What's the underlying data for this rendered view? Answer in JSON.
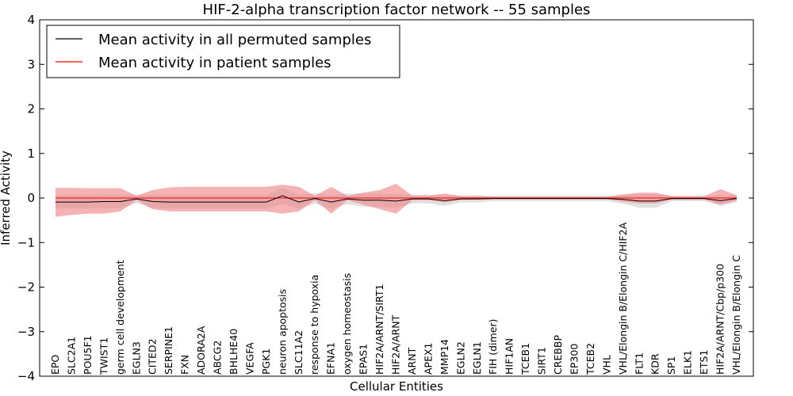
{
  "chart_data": {
    "type": "line",
    "title": "HIF-2-alpha transcription factor network -- 55 samples",
    "xlabel": "Cellular Entities",
    "ylabel": "Inferred Activity",
    "ylim": [
      -4,
      4
    ],
    "yticks": [
      "−4",
      "−3",
      "−2",
      "−1",
      "0",
      "1",
      "2",
      "3",
      "4"
    ],
    "yticks_values": [
      -4,
      -3,
      -2,
      -1,
      0,
      1,
      2,
      3,
      4
    ],
    "legend_position": "top-left",
    "categories": [
      "EPO",
      "SLC2A1",
      "POU5F1",
      "TWIST1",
      "germ cell development",
      "EGLN3",
      "CITED2",
      "SERPINE1",
      "FXN",
      "ADORA2A",
      "ABCG2",
      "BHLHE40",
      "VEGFA",
      "PGK1",
      "neuron apoptosis",
      "SLC11A2",
      "response to hypoxia",
      "EFNA1",
      "oxygen homeostasis",
      "EPAS1",
      "HIF2A/ARNT/SIRT1",
      "HIF2A/ARNT",
      "ARNT",
      "APEX1",
      "MMP14",
      "EGLN2",
      "EGLN1",
      "FIH (dimer)",
      "HIF1AN",
      "TCEB1",
      "SIRT1",
      "CREBBP",
      "EP300",
      "TCEB2",
      "VHL",
      "VHL/Elongin B/Elongin C/HIF2A",
      "FLT1",
      "KDR",
      "SP1",
      "ELK1",
      "ETS1",
      "HIF2A/ARNT/Cbp/p300",
      "VHL/Elongin B/Elongin C"
    ],
    "series": [
      {
        "name": "Mean activity in all permuted samples",
        "color": "#000000",
        "band_color": "#c8c8c8",
        "values": [
          -0.09,
          -0.09,
          -0.09,
          -0.08,
          -0.08,
          -0.02,
          -0.08,
          -0.09,
          -0.09,
          -0.09,
          -0.09,
          -0.09,
          -0.09,
          -0.09,
          0.05,
          -0.09,
          -0.01,
          -0.09,
          -0.02,
          -0.05,
          -0.05,
          -0.07,
          -0.02,
          -0.02,
          -0.06,
          -0.02,
          -0.02,
          -0.01,
          -0.01,
          -0.01,
          -0.01,
          -0.01,
          -0.01,
          -0.01,
          -0.01,
          -0.03,
          -0.07,
          -0.07,
          -0.01,
          -0.01,
          -0.01,
          -0.06,
          -0.01
        ],
        "band_half_width": [
          0.15,
          0.15,
          0.15,
          0.15,
          0.15,
          0.1,
          0.15,
          0.15,
          0.15,
          0.15,
          0.15,
          0.15,
          0.15,
          0.15,
          0.18,
          0.15,
          0.12,
          0.15,
          0.12,
          0.15,
          0.15,
          0.15,
          0.1,
          0.1,
          0.12,
          0.08,
          0.08,
          0.06,
          0.06,
          0.06,
          0.06,
          0.06,
          0.06,
          0.06,
          0.06,
          0.1,
          0.15,
          0.15,
          0.06,
          0.06,
          0.06,
          0.12,
          0.08
        ]
      },
      {
        "name": "Mean activity in patient samples",
        "color": "#ff0000",
        "band_color": "#f08080",
        "values": [
          0.0,
          0.0,
          0.0,
          0.0,
          0.0,
          0.0,
          0.0,
          0.0,
          0.0,
          0.0,
          0.0,
          0.0,
          0.0,
          0.0,
          0.0,
          0.0,
          0.0,
          0.0,
          0.0,
          0.0,
          0.0,
          0.0,
          0.0,
          0.0,
          0.0,
          0.0,
          0.0,
          0.0,
          0.0,
          0.0,
          0.0,
          0.0,
          0.0,
          0.0,
          0.0,
          0.0,
          0.0,
          0.0,
          0.0,
          0.0,
          0.0,
          0.0,
          0.0
        ],
        "band_upper": [
          0.23,
          0.23,
          0.22,
          0.22,
          0.22,
          0.05,
          0.18,
          0.24,
          0.25,
          0.25,
          0.25,
          0.25,
          0.25,
          0.25,
          0.3,
          0.25,
          0.05,
          0.25,
          0.05,
          0.12,
          0.18,
          0.32,
          0.05,
          0.05,
          0.1,
          0.04,
          0.04,
          0.03,
          0.03,
          0.03,
          0.03,
          0.03,
          0.03,
          0.03,
          0.03,
          0.08,
          0.12,
          0.12,
          0.04,
          0.04,
          0.04,
          0.2,
          0.06
        ],
        "band_lower": [
          -0.42,
          -0.38,
          -0.35,
          -0.35,
          -0.3,
          -0.05,
          -0.25,
          -0.3,
          -0.3,
          -0.3,
          -0.3,
          -0.3,
          -0.3,
          -0.3,
          -0.35,
          -0.3,
          -0.05,
          -0.35,
          -0.05,
          -0.15,
          -0.25,
          -0.35,
          -0.05,
          -0.05,
          -0.1,
          -0.04,
          -0.04,
          -0.03,
          -0.03,
          -0.03,
          -0.03,
          -0.03,
          -0.03,
          -0.03,
          -0.03,
          -0.08,
          -0.12,
          -0.12,
          -0.04,
          -0.04,
          -0.04,
          -0.15,
          -0.06
        ]
      }
    ]
  }
}
